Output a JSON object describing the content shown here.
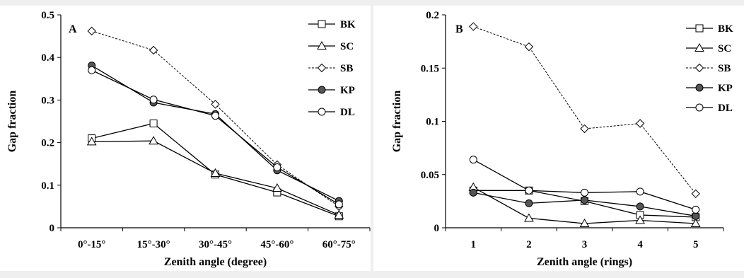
{
  "colors": {
    "background": "#efefef",
    "plot_bg": "#ffffff",
    "line": "#000000",
    "filled_marker": "#555555"
  },
  "chart_data": [
    {
      "type": "line",
      "panel_label": "A",
      "categories": [
        "0°-15°",
        "15°-30°",
        "30°-45°",
        "45°-60°",
        "60°-75°"
      ],
      "xlabel": "Zenith angle (degree)",
      "ylabel": "Gap fraction",
      "ylim": [
        0,
        0.5
      ],
      "yticks": [
        0,
        0.1,
        0.2,
        0.3,
        0.4,
        0.5
      ],
      "ytick_labels": [
        "0",
        "0.1",
        "0.2",
        "0.3",
        "0.4",
        "0.5"
      ],
      "grid": false,
      "legend_position": "top-right",
      "series": [
        {
          "name": "BK",
          "marker": "square",
          "dash": "solid",
          "values": [
            0.21,
            0.245,
            0.125,
            0.083,
            0.027
          ]
        },
        {
          "name": "SC",
          "marker": "triangle",
          "dash": "solid",
          "values": [
            0.202,
            0.204,
            0.128,
            0.093,
            0.03
          ]
        },
        {
          "name": "SB",
          "marker": "diamond",
          "dash": "dashed",
          "values": [
            0.462,
            0.417,
            0.29,
            0.148,
            0.05
          ]
        },
        {
          "name": "KP",
          "marker": "filled-circle",
          "dash": "solid",
          "values": [
            0.381,
            0.294,
            0.267,
            0.135,
            0.063
          ]
        },
        {
          "name": "DL",
          "marker": "circle",
          "dash": "solid",
          "values": [
            0.37,
            0.301,
            0.263,
            0.142,
            0.055
          ]
        }
      ]
    },
    {
      "type": "line",
      "panel_label": "B",
      "categories": [
        "1",
        "2",
        "3",
        "4",
        "5"
      ],
      "xlabel": "Zenith angle (rings)",
      "ylabel": "Gap fraction",
      "ylim": [
        0,
        0.2
      ],
      "yticks": [
        0,
        0.05,
        0.1,
        0.15,
        0.2
      ],
      "ytick_labels": [
        "0",
        "0.05",
        "0.1",
        "0.15",
        "0.2"
      ],
      "grid": false,
      "legend_position": "top-right",
      "series": [
        {
          "name": "BK",
          "marker": "square",
          "dash": "solid",
          "values": [
            0.035,
            0.035,
            0.025,
            0.012,
            0.01
          ]
        },
        {
          "name": "SC",
          "marker": "triangle",
          "dash": "solid",
          "values": [
            0.038,
            0.009,
            0.004,
            0.007,
            0.004
          ]
        },
        {
          "name": "SB",
          "marker": "diamond",
          "dash": "dashed",
          "values": [
            0.189,
            0.17,
            0.093,
            0.098,
            0.032
          ]
        },
        {
          "name": "KP",
          "marker": "filled-circle",
          "dash": "solid",
          "values": [
            0.033,
            0.023,
            0.026,
            0.02,
            0.011
          ]
        },
        {
          "name": "DL",
          "marker": "circle",
          "dash": "solid",
          "values": [
            0.064,
            0.035,
            0.033,
            0.034,
            0.017
          ]
        }
      ]
    }
  ]
}
